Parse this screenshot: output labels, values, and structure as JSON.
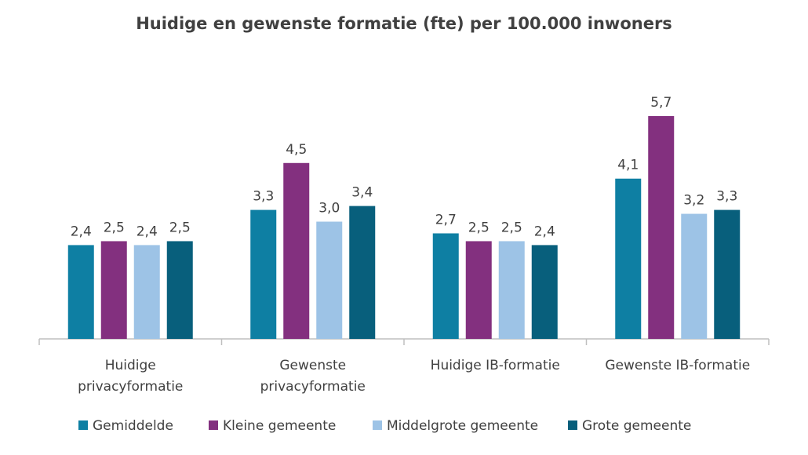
{
  "chart_data": {
    "type": "bar",
    "title": "Huidige en gewenste formatie (fte) per 100.000 inwoners",
    "categories": [
      [
        "Huidige",
        "privacyformatie"
      ],
      [
        "Gewenste",
        "privacyformatie"
      ],
      [
        "Huidige IB-formatie"
      ],
      [
        "Gewenste IB-formatie"
      ]
    ],
    "series": [
      {
        "name": "Gemiddelde",
        "color": "#0E7FA3",
        "values": [
          2.4,
          3.3,
          2.7,
          4.1
        ],
        "labels": [
          "2,4",
          "3,3",
          "2,7",
          "4,1"
        ]
      },
      {
        "name": "Kleine gemeente",
        "color": "#83307F",
        "values": [
          2.5,
          4.5,
          2.5,
          5.7
        ],
        "labels": [
          "2,5",
          "4,5",
          "2,5",
          "5,7"
        ]
      },
      {
        "name": "Middelgrote gemeente",
        "color": "#9DC3E6",
        "values": [
          2.4,
          3.0,
          2.5,
          3.2
        ],
        "labels": [
          "2,4",
          "3,0",
          "2,5",
          "3,2"
        ]
      },
      {
        "name": "Grote gemeente",
        "color": "#085F7C",
        "values": [
          2.5,
          3.4,
          2.4,
          3.3
        ],
        "labels": [
          "2,5",
          "3,4",
          "2,4",
          "3,3"
        ]
      }
    ],
    "xlabel": "",
    "ylabel": "",
    "ylim": [
      0,
      5.7
    ],
    "grid": false,
    "legend_position": "bottom"
  }
}
